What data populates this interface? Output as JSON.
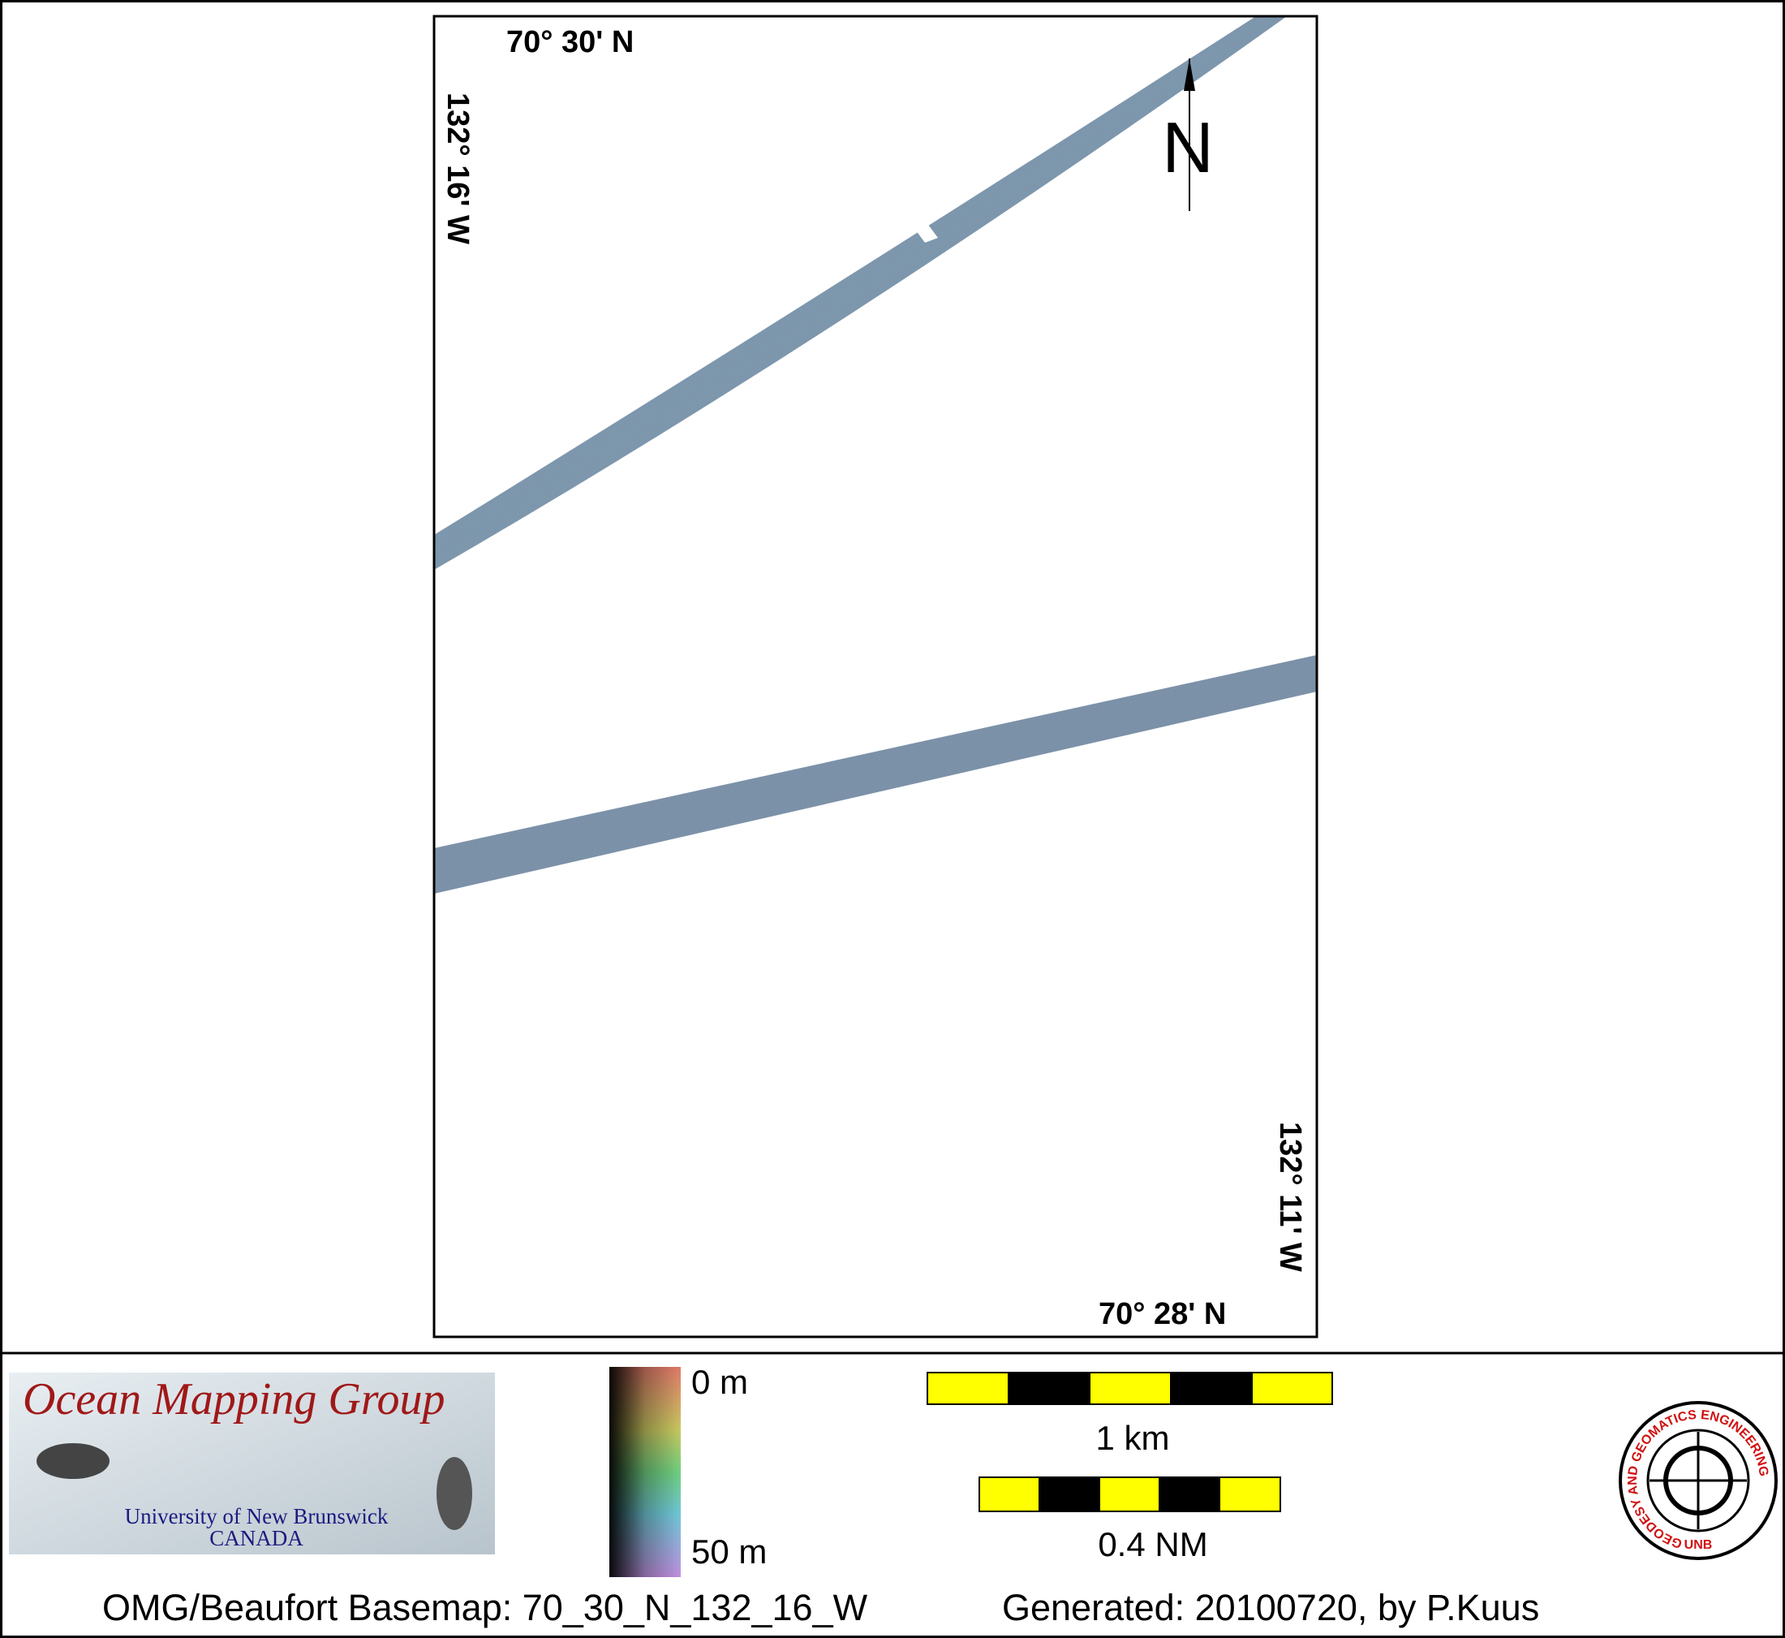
{
  "map": {
    "north_label": "N",
    "labels": {
      "top_lat": "70° 30' N",
      "left_lon": "132° 16' W",
      "right_lon": "132° 11' W",
      "bottom_lat": "70° 28' N"
    }
  },
  "legend": {
    "logo": {
      "title": "Ocean Mapping Group",
      "university": "University of New Brunswick",
      "country": "CANADA"
    },
    "depth_scale": {
      "top": "0 m",
      "bottom": "50 m"
    },
    "scale_bars": {
      "km": "1 km",
      "nm": "0.4 NM"
    },
    "unb_logo": {
      "ring": "GEODESY AND GEOMATICS ENGINEERING",
      "bottom": "UNB"
    }
  },
  "footer": {
    "basemap": "OMG/Beaufort Basemap: 70_30_N_132_16_W",
    "generated": "Generated: 20100720, by P.Kuus"
  }
}
